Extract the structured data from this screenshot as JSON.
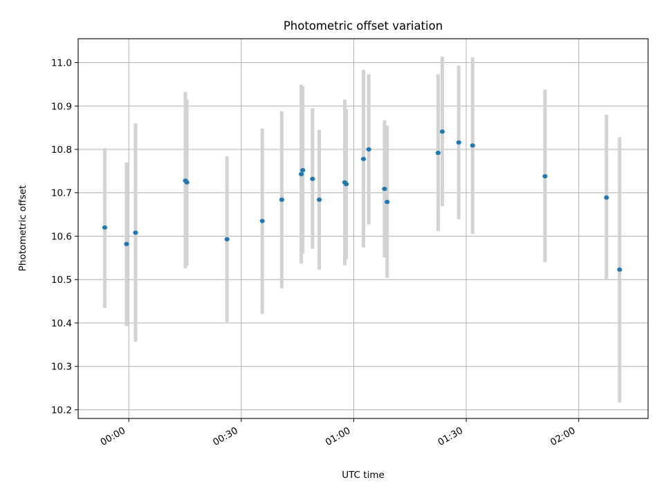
{
  "chart_data": {
    "type": "scatter",
    "title": "Photometric offset variation",
    "xlabel": "UTC time",
    "ylabel": "Photometric offset",
    "x_unit": "minutes",
    "xlim": [
      -13.5,
      138.5
    ],
    "ylim": [
      10.18,
      11.055
    ],
    "grid": true,
    "x_ticks": [
      {
        "value": 0,
        "label": "00:00"
      },
      {
        "value": 30,
        "label": "00:30"
      },
      {
        "value": 60,
        "label": "01:00"
      },
      {
        "value": 90,
        "label": "01:30"
      },
      {
        "value": 120,
        "label": "02:00"
      }
    ],
    "y_ticks": [
      {
        "value": 10.2,
        "label": "10.2"
      },
      {
        "value": 10.3,
        "label": "10.3"
      },
      {
        "value": 10.4,
        "label": "10.4"
      },
      {
        "value": 10.5,
        "label": "10.5"
      },
      {
        "value": 10.6,
        "label": "10.6"
      },
      {
        "value": 10.7,
        "label": "10.7"
      },
      {
        "value": 10.8,
        "label": "10.8"
      },
      {
        "value": 10.9,
        "label": "10.9"
      },
      {
        "value": 11.0,
        "label": "11.0"
      }
    ],
    "points": [
      {
        "x": -6.4,
        "y": 10.62,
        "lo": 10.435,
        "hi": 10.803
      },
      {
        "x": -0.6,
        "y": 10.582,
        "lo": 10.393,
        "hi": 10.77
      },
      {
        "x": 1.8,
        "y": 10.608,
        "lo": 10.357,
        "hi": 10.86
      },
      {
        "x": 15.1,
        "y": 10.728,
        "lo": 10.526,
        "hi": 10.932
      },
      {
        "x": 15.5,
        "y": 10.724,
        "lo": 10.532,
        "hi": 10.915
      },
      {
        "x": 26.2,
        "y": 10.593,
        "lo": 10.402,
        "hi": 10.784
      },
      {
        "x": 35.6,
        "y": 10.635,
        "lo": 10.421,
        "hi": 10.848
      },
      {
        "x": 40.8,
        "y": 10.684,
        "lo": 10.48,
        "hi": 10.888
      },
      {
        "x": 46.0,
        "y": 10.743,
        "lo": 10.537,
        "hi": 10.949
      },
      {
        "x": 46.4,
        "y": 10.752,
        "lo": 10.56,
        "hi": 10.945
      },
      {
        "x": 49.0,
        "y": 10.732,
        "lo": 10.571,
        "hi": 10.895
      },
      {
        "x": 50.8,
        "y": 10.684,
        "lo": 10.523,
        "hi": 10.845
      },
      {
        "x": 57.6,
        "y": 10.724,
        "lo": 10.533,
        "hi": 10.915
      },
      {
        "x": 58.0,
        "y": 10.72,
        "lo": 10.547,
        "hi": 10.892
      },
      {
        "x": 62.6,
        "y": 10.778,
        "lo": 10.574,
        "hi": 10.983
      },
      {
        "x": 64.0,
        "y": 10.8,
        "lo": 10.627,
        "hi": 10.973
      },
      {
        "x": 68.2,
        "y": 10.709,
        "lo": 10.551,
        "hi": 10.867
      },
      {
        "x": 68.9,
        "y": 10.679,
        "lo": 10.504,
        "hi": 10.855
      },
      {
        "x": 82.5,
        "y": 10.792,
        "lo": 10.612,
        "hi": 10.973
      },
      {
        "x": 83.6,
        "y": 10.841,
        "lo": 10.669,
        "hi": 11.014
      },
      {
        "x": 88.0,
        "y": 10.816,
        "lo": 10.639,
        "hi": 10.993
      },
      {
        "x": 91.7,
        "y": 10.809,
        "lo": 10.605,
        "hi": 11.012
      },
      {
        "x": 111.0,
        "y": 10.738,
        "lo": 10.54,
        "hi": 10.938
      },
      {
        "x": 127.4,
        "y": 10.689,
        "lo": 10.499,
        "hi": 10.88
      },
      {
        "x": 130.9,
        "y": 10.523,
        "lo": 10.217,
        "hi": 10.828
      }
    ],
    "colors": {
      "marker": "#1f77b4",
      "errorbar": "#d3d3d3",
      "grid": "#b0b0b0",
      "axes": "#000000"
    }
  }
}
